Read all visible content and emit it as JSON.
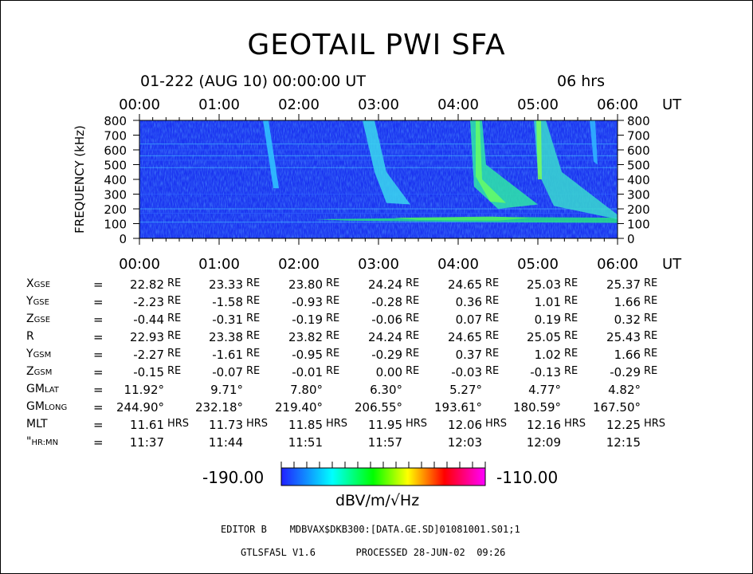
{
  "title": "GEOTAIL PWI SFA",
  "date_header": "01-222 (AUG 10) 00:00:00 UT",
  "duration_header": "06 hrs",
  "chart_data": {
    "type": "heatmap",
    "title": "GEOTAIL PWI SFA",
    "xlabel": "UT",
    "ylabel": "FREQUENCY (kHz)",
    "x_ticks": [
      "00:00",
      "01:00",
      "02:00",
      "03:00",
      "04:00",
      "05:00",
      "06:00"
    ],
    "x_unit": "UT",
    "xlim": [
      0,
      6
    ],
    "y_ticks": [
      "0",
      "100",
      "200",
      "300",
      "400",
      "500",
      "600",
      "700",
      "800"
    ],
    "ylim": [
      0,
      800
    ],
    "colorbar": {
      "min": "-190.00",
      "max": "-110.00",
      "unit": "dBV/m/√Hz",
      "colors": [
        "#2020ff",
        "#00ffff",
        "#00ff00",
        "#ffff00",
        "#ff0000",
        "#ff00ff"
      ]
    },
    "features": [
      {
        "name": "background noise band",
        "t_start": 0.0,
        "t_end": 6.0,
        "f_low": 0,
        "f_high": 800,
        "level": "-180"
      },
      {
        "name": "continuum band",
        "t_start": 2.2,
        "t_end": 6.0,
        "f_low": 100,
        "f_high": 150,
        "level": "-160"
      },
      {
        "name": "burst 1",
        "t_start": 1.55,
        "t_end": 1.75,
        "f_low": 340,
        "f_high": 800,
        "level": "-175"
      },
      {
        "name": "burst 2",
        "t_start": 2.8,
        "t_end": 3.4,
        "f_low": 230,
        "f_high": 800,
        "level": "-170"
      },
      {
        "name": "burst 3",
        "t_start": 4.15,
        "t_end": 5.0,
        "f_low": 200,
        "f_high": 800,
        "level": "-160"
      },
      {
        "name": "burst 4",
        "t_start": 4.95,
        "t_end": 6.0,
        "f_low": 130,
        "f_high": 800,
        "level": "-165"
      },
      {
        "name": "burst 5",
        "t_start": 5.65,
        "t_end": 5.75,
        "f_low": 500,
        "f_high": 800,
        "level": "-175"
      }
    ]
  },
  "ephemeris": {
    "rows": [
      {
        "label": "X",
        "sub": "GSE",
        "eq": "=",
        "values": [
          "22.82",
          "23.33",
          "23.80",
          "24.24",
          "24.65",
          "25.03",
          "25.37"
        ],
        "unit": "RE"
      },
      {
        "label": "Y",
        "sub": "GSE",
        "eq": "=",
        "values": [
          "-2.23",
          "-1.58",
          "-0.93",
          "-0.28",
          "0.36",
          "1.01",
          "1.66"
        ],
        "unit": "RE"
      },
      {
        "label": "Z",
        "sub": "GSE",
        "eq": "=",
        "values": [
          "-0.44",
          "-0.31",
          "-0.19",
          "-0.06",
          "0.07",
          "0.19",
          "0.32"
        ],
        "unit": "RE"
      },
      {
        "label": "R",
        "sub": "",
        "eq": "=",
        "values": [
          "22.93",
          "23.38",
          "23.82",
          "24.24",
          "24.65",
          "25.05",
          "25.43"
        ],
        "unit": "RE"
      },
      {
        "label": "Y",
        "sub": "GSM",
        "eq": "=",
        "values": [
          "-2.27",
          "-1.61",
          "-0.95",
          "-0.29",
          "0.37",
          "1.02",
          "1.66"
        ],
        "unit": "RE"
      },
      {
        "label": "Z",
        "sub": "GSM",
        "eq": "=",
        "values": [
          "-0.15",
          "-0.07",
          "-0.01",
          "0.00",
          "-0.03",
          "-0.13",
          "-0.29"
        ],
        "unit": "RE"
      },
      {
        "label": "GM",
        "sub": "LAT",
        "eq": "=",
        "values": [
          "11.92°",
          "9.71°",
          "7.80°",
          "6.30°",
          "5.27°",
          "4.77°",
          "4.82°"
        ],
        "unit": ""
      },
      {
        "label": "GM",
        "sub": "LONG",
        "eq": "=",
        "values": [
          "244.90°",
          "232.18°",
          "219.40°",
          "206.55°",
          "193.61°",
          "180.59°",
          "167.50°"
        ],
        "unit": ""
      },
      {
        "label": "MLT",
        "sub": "",
        "eq": "=",
        "values": [
          "11.61",
          "11.73",
          "11.85",
          "11.95",
          "12.06",
          "12.16",
          "12.25"
        ],
        "unit": "HRS"
      },
      {
        "label": "\"",
        "sub": "HR:MN",
        "eq": "=",
        "values": [
          "11:37",
          "11:44",
          "11:51",
          "11:57",
          "12:03",
          "12:09",
          "12:15"
        ],
        "unit": ""
      }
    ]
  },
  "colorbar_min": "-190.00",
  "colorbar_max": "-110.00",
  "colorbar_unit": "dBV/m/√Hz",
  "editor_line": "EDITOR B    MDBVAX$DKB300:[DATA.GE.SD]01081001.S01;1",
  "footer_line": "GTLSFA5L V1.6       PROCESSED 28-JUN-02  09:26"
}
